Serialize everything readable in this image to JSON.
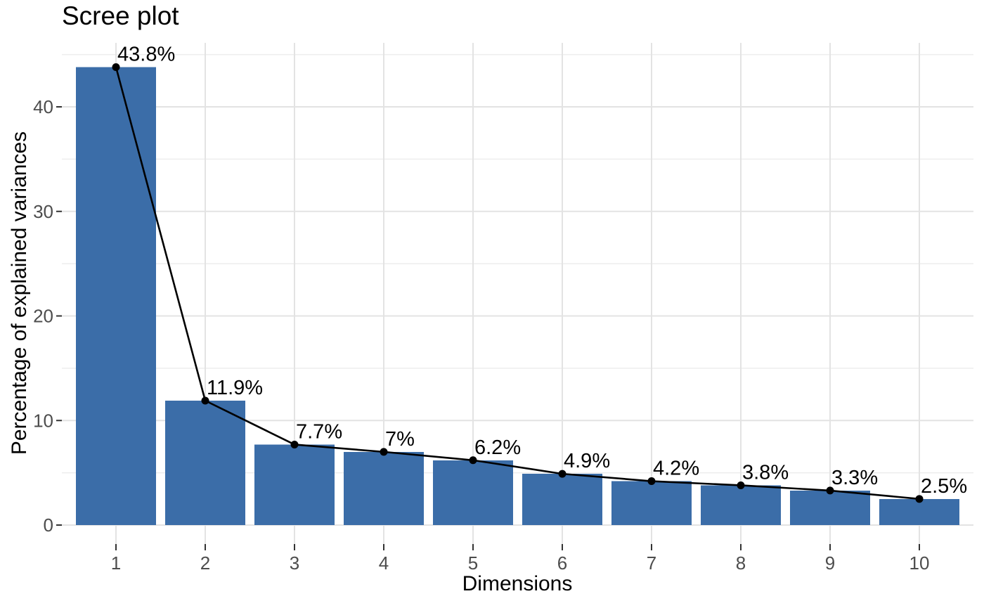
{
  "chart_data": {
    "type": "bar",
    "overlay": "line-with-points",
    "title": "Scree plot",
    "xlabel": "Dimensions",
    "ylabel": "Percentage of explained variances",
    "categories": [
      "1",
      "2",
      "3",
      "4",
      "5",
      "6",
      "7",
      "8",
      "9",
      "10"
    ],
    "values": [
      43.8,
      11.9,
      7.7,
      7,
      6.2,
      4.9,
      4.2,
      3.8,
      3.3,
      2.5
    ],
    "point_labels": [
      "43.8%",
      "11.9%",
      "7.7%",
      "7%",
      "6.2%",
      "4.9%",
      "4.2%",
      "3.8%",
      "3.3%",
      "2.5%"
    ],
    "y_ticks": [
      0,
      10,
      20,
      30,
      40
    ],
    "y_minor_ticks": [
      5,
      15,
      25,
      35,
      45
    ],
    "ylim": [
      0,
      46
    ],
    "grid": true,
    "legend": "none",
    "colors": {
      "bar_fill": "#3B6DA8",
      "line": "#000000",
      "point": "#000000",
      "grid_major": "#E3E3E3",
      "grid_minor": "#EDEDED",
      "axis_tick": "#333333",
      "tick_label": "#4D4D4D",
      "text": "#000000",
      "background": "#FFFFFF"
    }
  }
}
